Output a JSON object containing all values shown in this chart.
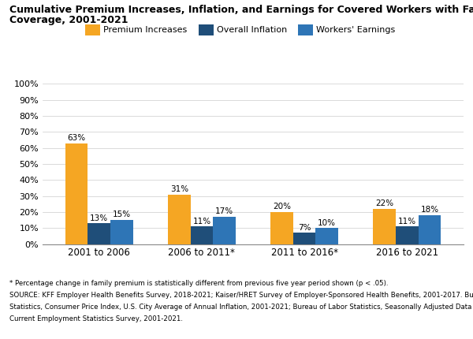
{
  "title_line1": "Cumulative Premium Increases, Inflation, and Earnings for Covered Workers with Family",
  "title_line2": "Coverage, 2001-2021",
  "categories": [
    "2001 to 2006",
    "2006 to 2011*",
    "2011 to 2016*",
    "2016 to 2021"
  ],
  "series": {
    "Premium Increases": [
      63,
      31,
      20,
      22
    ],
    "Overall Inflation": [
      13,
      11,
      7,
      11
    ],
    "Workers' Earnings": [
      15,
      17,
      10,
      18
    ]
  },
  "colors": {
    "Premium Increases": "#F5A623",
    "Overall Inflation": "#1F4E79",
    "Workers' Earnings": "#2E75B6"
  },
  "ylim": [
    0,
    110
  ],
  "yticks": [
    0,
    10,
    20,
    30,
    40,
    50,
    60,
    70,
    80,
    90,
    100
  ],
  "ytick_labels": [
    "0%",
    "10%",
    "20%",
    "30%",
    "40%",
    "50%",
    "60%",
    "70%",
    "80%",
    "90%",
    "100%"
  ],
  "footnote1": "* Percentage change in family premium is statistically different from previous five year period shown (p < .05).",
  "footnote2": "SOURCE: KFF Employer Health Benefits Survey, 2018-2021; Kaiser/HRET Survey of Employer-Sponsored Health Benefits, 2001-2017. Bureau of Labor",
  "footnote3": "Statistics, Consumer Price Index, U.S. City Average of Annual Inflation, 2001-2021; Bureau of Labor Statistics, Seasonally Adjusted Data from the",
  "footnote4": "Current Employment Statistics Survey, 2001-2021.",
  "bar_width": 0.22
}
